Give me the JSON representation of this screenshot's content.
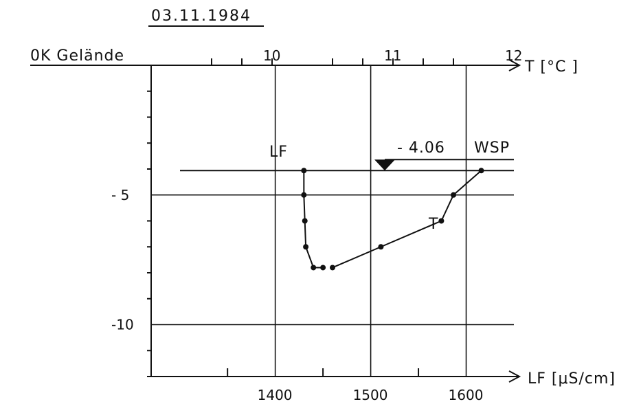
{
  "chart_data": {
    "type": "line",
    "date": "03.11.1984",
    "y_axis": {
      "label": "0K Gelände",
      "range": [
        0,
        -12
      ],
      "ticks": [
        -5,
        -10
      ],
      "tick_labels": [
        "- 5",
        "-10"
      ]
    },
    "x_top": {
      "label": "T [°C ]",
      "range": [
        9.0,
        12.0
      ],
      "ticks": [
        10,
        11,
        12
      ],
      "tick_labels": [
        "10",
        "11",
        "12"
      ]
    },
    "x_bottom": {
      "label": "LF [μS/cm]",
      "range": [
        1270,
        1650
      ],
      "ticks": [
        1400,
        1500,
        1600
      ],
      "tick_labels": [
        "1400",
        "1500",
        "1600"
      ]
    },
    "water_level": {
      "depth": -4.06,
      "value_label": "- 4.06",
      "label": "WSP"
    },
    "series": [
      {
        "name": "LF",
        "axis": "bottom",
        "points": [
          {
            "x": 1430,
            "y": -4.06
          },
          {
            "x": 1430,
            "y": -5.0
          },
          {
            "x": 1431,
            "y": -6.0
          },
          {
            "x": 1432,
            "y": -7.0
          },
          {
            "x": 1440,
            "y": -7.8
          },
          {
            "x": 1450,
            "y": -7.8
          }
        ]
      },
      {
        "name": "T",
        "axis": "top",
        "points": [
          {
            "x": 11.73,
            "y": -4.06
          },
          {
            "x": 11.5,
            "y": -5.0
          },
          {
            "x": 11.4,
            "y": -6.0
          },
          {
            "x": 10.9,
            "y": -7.0
          },
          {
            "x": 10.5,
            "y": -7.8
          }
        ]
      }
    ],
    "grid": true
  }
}
